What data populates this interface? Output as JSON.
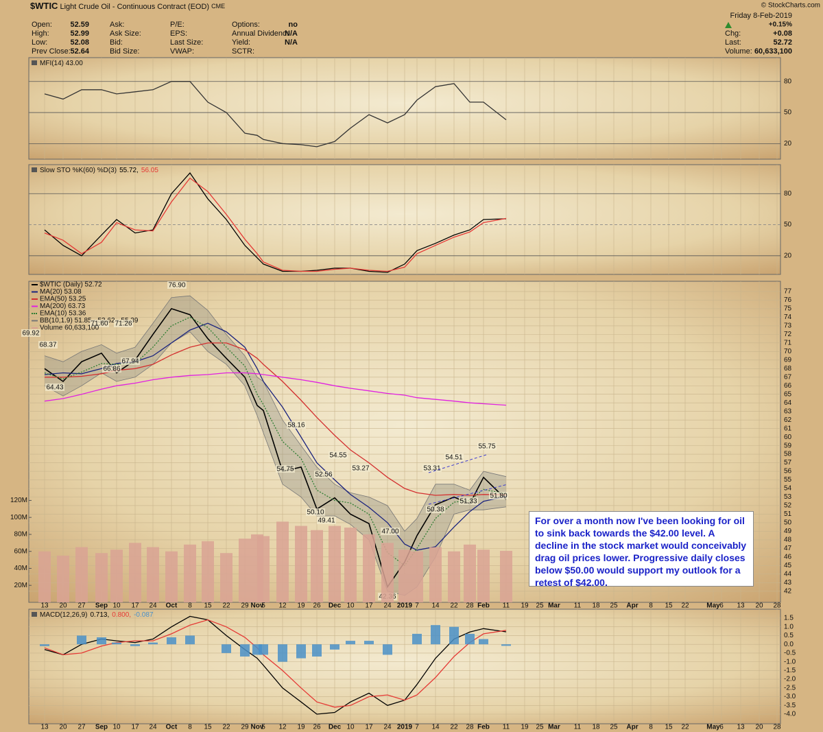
{
  "header": {
    "symbol": "$WTIC",
    "name": "Light Crude Oil - Continuous Contract (EOD)",
    "exchange": "CME",
    "fields": [
      [
        {
          "label": "Open:",
          "value": 52.59
        },
        {
          "label": "High:",
          "value": 52.99
        },
        {
          "label": "Low:",
          "value": 52.08
        },
        {
          "label": "Prev Close:",
          "value": 52.64
        }
      ],
      [
        {
          "label": "Ask:"
        },
        {
          "label": "Ask Size:"
        },
        {
          "label": "Bid:"
        },
        {
          "label": "Bid Size:"
        }
      ],
      [
        {
          "label": "P/E:"
        },
        {
          "label": "EPS:"
        },
        {
          "label": "Last Size:"
        },
        {
          "label": "VWAP:"
        }
      ],
      [
        {
          "label": "Options:",
          "value": "no"
        },
        {
          "label": "Annual Dividend:",
          "value": "N/A"
        },
        {
          "label": "Yield:",
          "value": "N/A"
        },
        {
          "label": "SCTR:"
        }
      ]
    ],
    "date": "Friday 8-Feb-2019",
    "change_pct": "+0.15%",
    "quote": [
      {
        "label": "Chg:",
        "value": "+0.08"
      },
      {
        "label": "Last:",
        "value": 52.72
      },
      {
        "label": "Volume:",
        "value": "60,633,100"
      }
    ],
    "copyright": "© StockCharts.com"
  },
  "callout": "For over a month now I've been looking for oil to sink back towards the $42.00 level. A decline in the stock market would conceivably drag oil prices lower. Progressive daily closes below $50.00 would support my outlook for a retest of $42.00.",
  "chart_data": [
    {
      "type": "line",
      "title": "MFI(14) 43.00",
      "ylim": [
        5,
        103
      ],
      "yticks": [
        80,
        50,
        20
      ],
      "grid": true,
      "series": [
        {
          "color": "#333333",
          "style": "line",
          "values": [
            68,
            63,
            72,
            72,
            68,
            70,
            72,
            80,
            80,
            60,
            50,
            30,
            28,
            24,
            20,
            19,
            17,
            22,
            35,
            48,
            40,
            48,
            62,
            75,
            78,
            60,
            60,
            43,
            null,
            null,
            null,
            null,
            null,
            null,
            null,
            null,
            null,
            null,
            null,
            null,
            null,
            null,
            null
          ]
        }
      ]
    },
    {
      "type": "line",
      "title": "Slow STO %K(60) %D(3)",
      "ylim": [
        2,
        108
      ],
      "yticks": [
        80,
        50,
        20
      ],
      "grid": true,
      "series": [
        {
          "name": "55.72,",
          "color": "#000000",
          "style": "line",
          "values": [
            45,
            30,
            20,
            40,
            55,
            42,
            45,
            80,
            100,
            75,
            55,
            30,
            18,
            12,
            5,
            5,
            6,
            8,
            8,
            5,
            4,
            12,
            25,
            32,
            40,
            45,
            55,
            55.72,
            null,
            null,
            null,
            null,
            null,
            null,
            null,
            null,
            null,
            null,
            null,
            null,
            null,
            null,
            null
          ]
        },
        {
          "name": "56.05",
          "color": "#e53935",
          "style": "line",
          "values": [
            42,
            35,
            22,
            33,
            52,
            45,
            44,
            72,
            95,
            82,
            60,
            36,
            22,
            14,
            6,
            5,
            5,
            7,
            8,
            6,
            5,
            9,
            22,
            30,
            38,
            43,
            52,
            56.05,
            null,
            null,
            null,
            null,
            null,
            null,
            null,
            null,
            null,
            null,
            null,
            null,
            null,
            null,
            null
          ]
        }
      ]
    },
    {
      "type": "line",
      "ylim": [
        40.7,
        78.2
      ],
      "yticks": [
        42,
        43,
        44,
        45,
        46,
        47,
        48,
        49,
        50,
        51,
        52,
        53,
        54,
        55,
        56,
        57,
        58,
        59,
        60,
        61,
        62,
        63,
        64,
        65,
        66,
        67,
        68,
        69,
        70,
        71,
        72,
        73,
        74,
        75,
        76,
        77
      ],
      "grid": true,
      "categories": [
        "13",
        "20",
        "27",
        "Sep",
        "10",
        "17",
        "24",
        "Oct",
        "8",
        "15",
        "22",
        "29",
        "Nov",
        "5",
        "12",
        "19",
        "26",
        "Dec",
        "10",
        "17",
        "24",
        "2019",
        "7",
        "14",
        "22",
        "28",
        "Feb",
        "11",
        "19",
        "25",
        "Mar",
        "11",
        "18",
        "25",
        "Apr",
        "8",
        "15",
        "22",
        "May",
        "6",
        "13",
        "20",
        "28"
      ],
      "series": [
        {
          "name": "$WTIC (Daily) 52.72",
          "color": "#000000",
          "style": "line",
          "values": [
            68.0,
            66.5,
            68.8,
            69.8,
            67.5,
            69.0,
            72.0,
            75.0,
            74.3,
            71.5,
            69.2,
            67.0,
            63.7,
            63.1,
            56.0,
            56.5,
            51.6,
            52.9,
            51.0,
            49.9,
            42.5,
            45.4,
            48.5,
            52.1,
            53.0,
            52.2,
            55.3,
            52.72,
            null,
            null,
            null,
            null,
            null,
            null,
            null,
            null,
            null,
            null,
            null,
            null,
            null,
            null,
            null
          ]
        },
        {
          "name": "MA(20) 53.08",
          "color": "#1a237e",
          "style": "line",
          "values": [
            67.3,
            67.5,
            67.4,
            68.0,
            68.6,
            68.8,
            69.5,
            71.0,
            72.5,
            73.3,
            72.3,
            70.5,
            68.0,
            66.5,
            63.5,
            60.0,
            57.0,
            55.0,
            53.3,
            51.8,
            50.0,
            47.5,
            46.8,
            47.2,
            49.5,
            51.3,
            52.5,
            53.08,
            null,
            null,
            null,
            null,
            null,
            null,
            null,
            null,
            null,
            null,
            null,
            null,
            null,
            null,
            null
          ]
        },
        {
          "name": "EMA(50) 53.25",
          "color": "#d32f2f",
          "style": "line",
          "values": [
            67.0,
            67.0,
            67.1,
            67.4,
            67.8,
            68.0,
            68.5,
            69.6,
            70.5,
            71.0,
            71.0,
            70.2,
            69.2,
            68.5,
            66.5,
            64.3,
            62.3,
            60.2,
            58.5,
            57.0,
            55.3,
            54.0,
            53.5,
            53.2,
            53.3,
            53.2,
            53.3,
            53.25,
            null,
            null,
            null,
            null,
            null,
            null,
            null,
            null,
            null,
            null,
            null,
            null,
            null,
            null,
            null
          ]
        },
        {
          "name": "MA(200) 63.73",
          "color": "#e020e0",
          "style": "line",
          "values": [
            64.2,
            64.5,
            65.0,
            65.6,
            66.0,
            66.3,
            66.7,
            67.0,
            67.2,
            67.3,
            67.5,
            67.5,
            67.4,
            67.3,
            67.0,
            66.7,
            66.4,
            66.0,
            65.7,
            65.4,
            65.1,
            64.9,
            64.6,
            64.4,
            64.2,
            64.0,
            63.9,
            63.73,
            null,
            null,
            null,
            null,
            null,
            null,
            null,
            null,
            null,
            null,
            null,
            null,
            null,
            null,
            null
          ]
        },
        {
          "name": "EMA(10) 53.36",
          "color": "#2e7d32",
          "style": "dotted",
          "values": [
            67.5,
            66.8,
            67.6,
            68.6,
            68.5,
            68.6,
            70.5,
            73.0,
            74.0,
            72.8,
            70.5,
            68.3,
            65.0,
            63.8,
            59.5,
            57.5,
            53.8,
            52.6,
            52.3,
            51.0,
            46.5,
            45.0,
            47.0,
            50.5,
            52.4,
            52.6,
            53.9,
            53.36,
            null,
            null,
            null,
            null,
            null,
            null,
            null,
            null,
            null,
            null,
            null,
            null,
            null,
            null,
            null
          ]
        }
      ],
      "band": {
        "name": "BB(10,1.9) 51.85 - 53.62 - 55.39",
        "color": "#8a8a80",
        "upper": [
          69.5,
          68.8,
          70.0,
          70.8,
          69.8,
          70.5,
          73.3,
          76.3,
          76.5,
          74.8,
          72.0,
          69.5,
          67.0,
          66.5,
          62.0,
          59.0,
          56.5,
          54.5,
          53.5,
          53.0,
          52.0,
          49.0,
          50.5,
          54.5,
          54.5,
          53.8,
          56.0,
          55.39,
          null,
          null,
          null,
          null,
          null,
          null,
          null,
          null,
          null,
          null,
          null,
          null,
          null,
          null,
          null
        ],
        "lower": [
          66.0,
          64.8,
          66.0,
          67.5,
          66.5,
          67.0,
          68.5,
          71.0,
          72.3,
          70.0,
          68.5,
          66.0,
          62.5,
          60.5,
          54.5,
          53.0,
          50.8,
          50.8,
          49.8,
          48.0,
          42.0,
          41.5,
          42.5,
          46.0,
          51.0,
          51.5,
          51.5,
          51.85,
          null,
          null,
          null,
          null,
          null,
          null,
          null,
          null,
          null,
          null,
          null,
          null,
          null,
          null,
          null
        ]
      },
      "annotations": {
        "values": [
          69.92,
          68.37,
          64.43,
          66.86,
          67.94,
          71.6,
          71.26,
          76.9,
          58.16,
          54.75,
          54.55,
          52.56,
          53.27,
          50.1,
          49.41,
          47.0,
          42.36,
          53.31,
          54.51,
          55.75,
          50.38,
          51.33,
          51.8
        ],
        "value_labels": [
          "69.92",
          "68.37",
          "64.43",
          "66.86",
          "67.94",
          "71.60",
          "71.26",
          "76.90",
          "58.16",
          "54.75",
          "54.55",
          "52.56",
          "53.27",
          "50.10",
          "49.41",
          "47.00",
          "42.36",
          "53.31",
          "54.51",
          "55.75",
          "50.38",
          "51.33",
          "51.80"
        ]
      }
    },
    {
      "type": "bar",
      "ylim": [
        0,
        378000000
      ],
      "yticks": [
        {
          "value": 20000000,
          "label": "20M"
        },
        {
          "value": 40000000,
          "label": "40M"
        },
        {
          "value": 60000000,
          "label": "60M"
        },
        {
          "value": 80000000,
          "label": "80M"
        },
        {
          "value": 100000000,
          "label": "100M"
        },
        {
          "value": 120000000,
          "label": "120M"
        }
      ],
      "series": [
        {
          "name": "Volume 60,633,100",
          "color": "#d9a394",
          "style": "bar",
          "values": [
            60000000,
            55000000,
            65000000,
            58000000,
            62000000,
            70000000,
            65000000,
            60000000,
            68000000,
            72000000,
            58000000,
            75000000,
            80000000,
            78000000,
            95000000,
            90000000,
            85000000,
            90000000,
            88000000,
            80000000,
            70000000,
            62000000,
            60000000,
            65000000,
            60000000,
            68000000,
            62000000,
            60633100,
            null,
            null,
            null,
            null,
            null,
            null,
            null,
            null,
            null,
            null,
            null,
            null,
            null,
            null,
            null
          ]
        }
      ]
    },
    {
      "type": "line",
      "title": "MACD(12,26,9)",
      "ylim": [
        -4.55,
        2.01
      ],
      "grid": true,
      "yticks": [
        1.5,
        {
          "value": 1,
          "label": "1.0"
        },
        0.5,
        {
          "value": 0,
          "label": "0.0"
        },
        -0.5,
        {
          "value": -1,
          "label": "-1.0"
        },
        -1.5,
        {
          "value": -2,
          "label": "-2.0"
        },
        -2.5,
        {
          "value": -3,
          "label": "-3.0"
        },
        -3.5,
        {
          "value": -4,
          "label": "-4.0"
        }
      ],
      "categories": [
        "13",
        "20",
        "27",
        "Sep",
        "10",
        "17",
        "24",
        "Oct",
        "8",
        "15",
        "22",
        "29",
        "Nov",
        "5",
        "12",
        "19",
        "26",
        "Dec",
        "10",
        "17",
        "24",
        "2019",
        "7",
        "14",
        "22",
        "28",
        "Feb",
        "11",
        "19",
        "25",
        "Mar",
        "11",
        "18",
        "25",
        "Apr",
        "8",
        "15",
        "22",
        "May",
        "6",
        "13",
        "20",
        "28"
      ],
      "series": [
        {
          "name": "0.713,",
          "color": "#000000",
          "style": "line",
          "values": [
            -0.3,
            -0.6,
            0.0,
            0.3,
            0.2,
            0.1,
            0.3,
            1.0,
            1.6,
            1.4,
            0.5,
            -0.3,
            -0.8,
            -1.2,
            -2.5,
            -3.3,
            -4.0,
            -3.9,
            -3.3,
            -2.8,
            -3.5,
            -3.2,
            -2.3,
            -0.8,
            0.3,
            0.7,
            0.9,
            0.713,
            null,
            null,
            null,
            null,
            null,
            null,
            null,
            null,
            null,
            null,
            null,
            null,
            null,
            null,
            null
          ]
        },
        {
          "name": "0.800,",
          "color": "#e53935",
          "style": "line",
          "values": [
            -0.2,
            -0.6,
            -0.5,
            -0.1,
            0.1,
            0.2,
            0.2,
            0.6,
            1.1,
            1.4,
            1.0,
            0.4,
            -0.2,
            -0.6,
            -1.5,
            -2.5,
            -3.3,
            -3.6,
            -3.5,
            -3.0,
            -2.9,
            -3.2,
            -2.9,
            -1.9,
            -0.7,
            0.1,
            0.6,
            0.8,
            null,
            null,
            null,
            null,
            null,
            null,
            null,
            null,
            null,
            null,
            null,
            null,
            null,
            null,
            null
          ]
        },
        {
          "name": "-0.087",
          "color": "#4a90c8",
          "style": "bar",
          "values": [
            -0.1,
            0,
            0.5,
            0.4,
            0.1,
            -0.1,
            0.1,
            0.4,
            0.5,
            0,
            -0.5,
            -0.7,
            -0.6,
            -0.6,
            -1.0,
            -0.8,
            -0.7,
            -0.3,
            0.2,
            0.2,
            -0.6,
            0,
            0.6,
            1.1,
            1.0,
            0.6,
            0.3,
            -0.087,
            null,
            null,
            null,
            null,
            null,
            null,
            null,
            null,
            null,
            null,
            null,
            null,
            null,
            null,
            null
          ]
        }
      ]
    }
  ]
}
